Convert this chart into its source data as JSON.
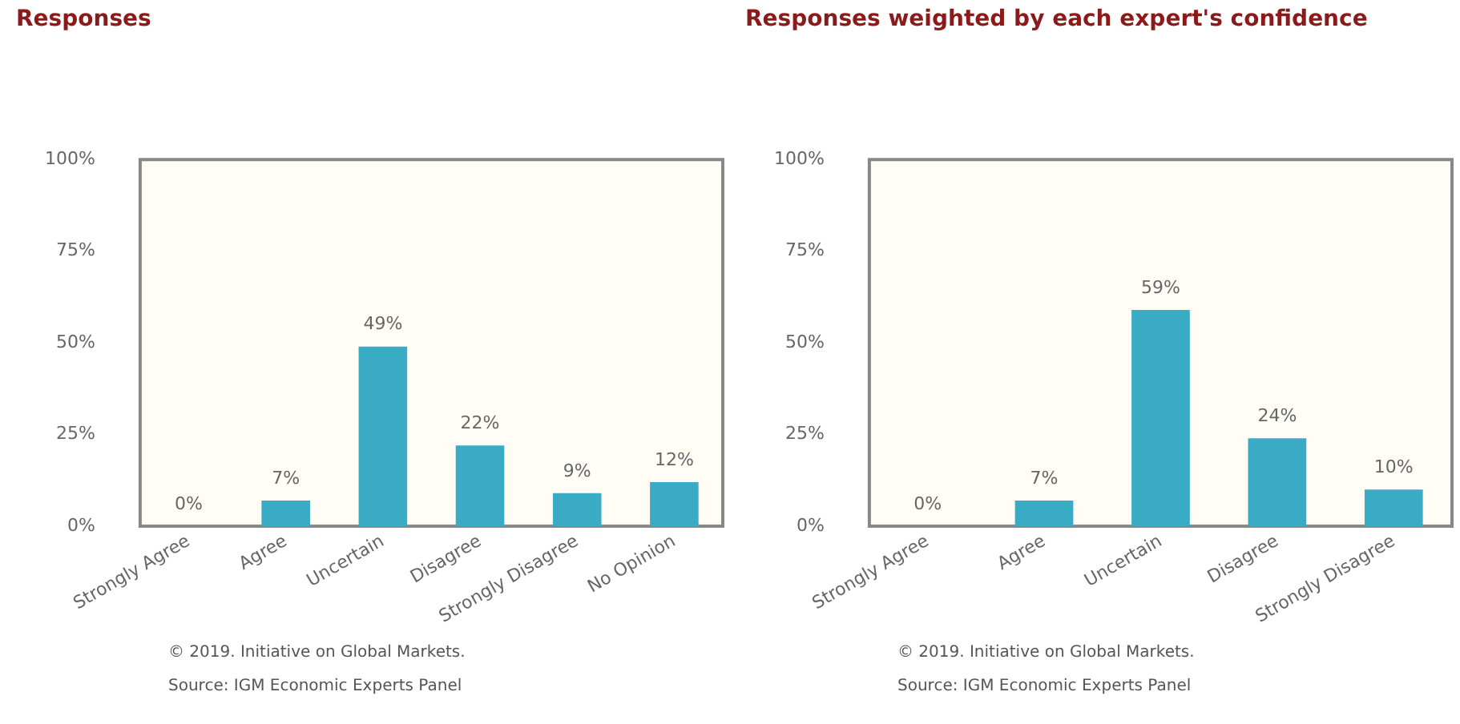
{
  "chart_data": [
    {
      "type": "bar",
      "title": "Responses",
      "categories": [
        "Strongly Agree",
        "Agree",
        "Uncertain",
        "Disagree",
        "Strongly Disagree",
        "No Opinion"
      ],
      "values": [
        0,
        7,
        49,
        22,
        9,
        12
      ],
      "color": "#3aabc4",
      "ylim": [
        0,
        100
      ],
      "yticks": [
        {
          "value": 0,
          "label": "0%"
        },
        {
          "value": 25,
          "label": "25%"
        },
        {
          "value": 50,
          "label": "50%"
        },
        {
          "value": 75,
          "label": "75%"
        },
        {
          "value": 100,
          "label": "100%"
        }
      ],
      "grid": false,
      "data_labels": true,
      "value_labels": [
        "0%",
        "7%",
        "49%",
        "22%",
        "9%",
        "12%"
      ],
      "annotations": [
        "© 2019. Initiative on Global Markets.",
        "Source: IGM Economic Experts Panel"
      ]
    },
    {
      "type": "bar",
      "title": "Responses weighted by each expert's confidence",
      "categories": [
        "Strongly Agree",
        "Agree",
        "Uncertain",
        "Disagree",
        "Strongly Disagree"
      ],
      "values": [
        0,
        7,
        59,
        24,
        10
      ],
      "color": "#3aabc4",
      "ylim": [
        0,
        100
      ],
      "yticks": [
        {
          "value": 0,
          "label": "0%"
        },
        {
          "value": 25,
          "label": "25%"
        },
        {
          "value": 50,
          "label": "50%"
        },
        {
          "value": 75,
          "label": "75%"
        },
        {
          "value": 100,
          "label": "100%"
        }
      ],
      "grid": false,
      "data_labels": true,
      "value_labels": [
        "0%",
        "7%",
        "59%",
        "24%",
        "10%"
      ],
      "annotations": [
        "© 2019. Initiative on Global Markets.",
        "Source: IGM Economic Experts Panel"
      ]
    }
  ]
}
